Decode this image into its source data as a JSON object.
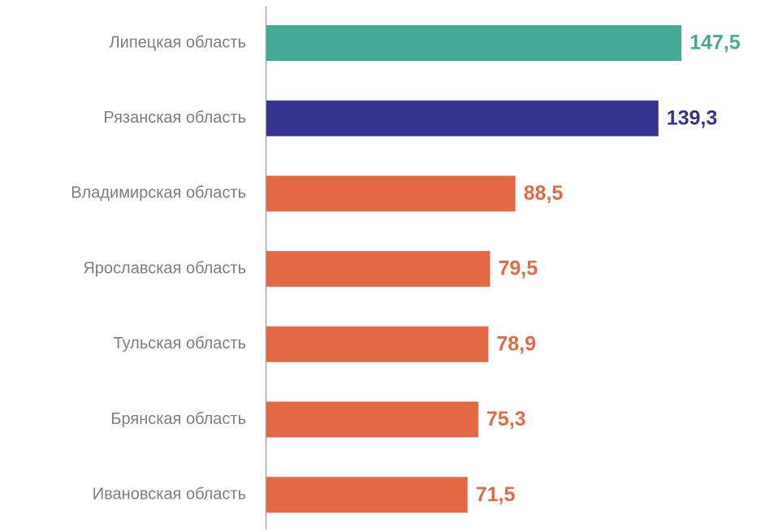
{
  "chart_data": {
    "type": "barh",
    "categories": [
      "Липецкая область",
      "Рязанская область",
      "Владимирская область",
      "Ярославская область",
      "Тульская область",
      "Брянская область",
      "Ивановская область"
    ],
    "values": [
      147.5,
      139.3,
      88.5,
      79.5,
      78.9,
      75.3,
      71.5
    ],
    "value_labels": [
      "147,5",
      "139,3",
      "88,5",
      "79,5",
      "78,9",
      "75,3",
      "71,5"
    ],
    "colors": [
      "#45ab96",
      "#36338f",
      "#e46947",
      "#e46947",
      "#e46947",
      "#e46947",
      "#e46947"
    ]
  }
}
